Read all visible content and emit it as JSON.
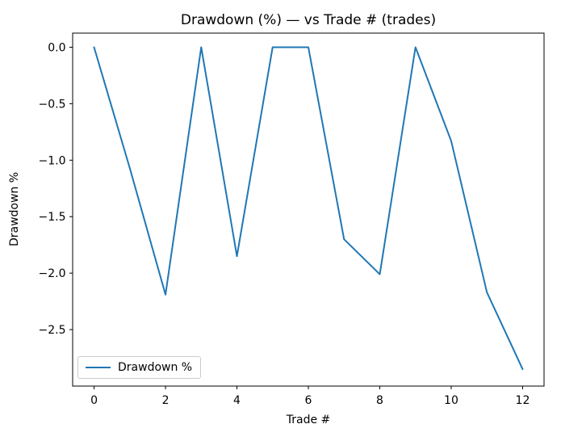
{
  "title": "Drawdown (%) — vs Trade # (trades)",
  "chart_data": {
    "type": "line",
    "title": "Drawdown (%) — vs Trade # (trades)",
    "xlabel": "Trade #",
    "ylabel": "Drawdown %",
    "x": [
      0,
      1,
      2,
      3,
      4,
      5,
      6,
      7,
      8,
      9,
      10,
      11,
      12
    ],
    "series": [
      {
        "name": "Drawdown %",
        "values": [
          0.0,
          -1.07,
          -2.19,
          0.0,
          -1.85,
          0.0,
          0.0,
          -1.7,
          -2.01,
          0.0,
          -0.83,
          -2.17,
          -2.85
        ],
        "color": "#1f77b4"
      }
    ],
    "xticks": [
      0,
      2,
      4,
      6,
      8,
      10,
      12
    ],
    "yticks": [
      0.0,
      -0.5,
      -1.0,
      -1.5,
      -2.0,
      -2.5
    ],
    "xlim": [
      -0.6,
      12.6
    ],
    "ylim": [
      -3.0,
      0.125
    ],
    "grid": false,
    "legend_position": "lower left"
  },
  "colors": {
    "line": "#1f77b4",
    "axis": "#000000",
    "text": "#000000",
    "background": "#ffffff",
    "legend_border": "#cccccc"
  }
}
